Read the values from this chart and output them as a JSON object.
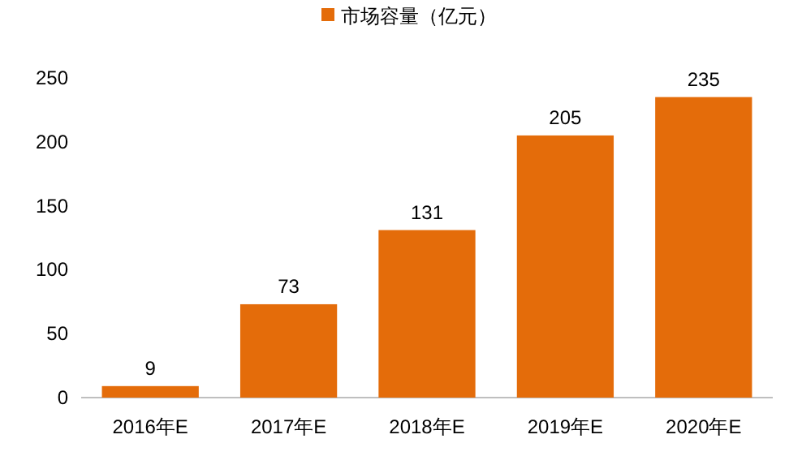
{
  "chart_data": {
    "type": "bar",
    "categories": [
      "2016年E",
      "2017年E",
      "2018年E",
      "2019年E",
      "2020年E"
    ],
    "series": [
      {
        "name": "市场容量（亿元）",
        "color": "#e46c0a",
        "values": [
          9,
          73,
          131,
          205,
          235
        ]
      }
    ],
    "ylim": [
      0,
      250
    ],
    "yticks": [
      0,
      50,
      100,
      150,
      200,
      250
    ],
    "data_labels": true,
    "legend": "top",
    "grid": false
  }
}
